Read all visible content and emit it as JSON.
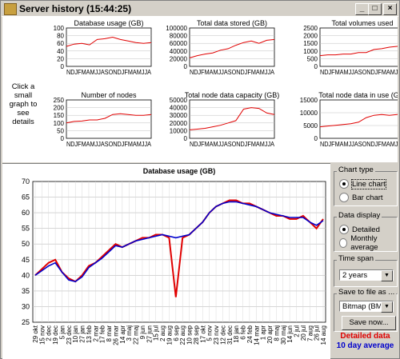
{
  "window": {
    "title": "Server history  (15:44:25)",
    "controls": [
      "_",
      "□",
      "×"
    ]
  },
  "hint_text": "Click a small graph to see details",
  "small_charts": [
    {
      "title": "Database usage (GB)",
      "yticks": [
        "100",
        "80",
        "60",
        "40",
        "20",
        "0"
      ],
      "xlabel": "NDJFMAMJJASONDJFMAMJJA"
    },
    {
      "title": "Total data stored (GB)",
      "yticks": [
        "100000",
        "80000",
        "60000",
        "40000",
        "20000",
        "0"
      ],
      "xlabel": "NDJFMAMJJASONDJFMAMJJA"
    },
    {
      "title": "Total volumes used",
      "yticks": [
        "2500",
        "2000",
        "1500",
        "1000",
        "500",
        "0"
      ],
      "xlabel": "NDJFMAMJJASONDJFMAMJJA"
    },
    {
      "title": "Number of nodes",
      "yticks": [
        "250",
        "200",
        "150",
        "100",
        "50",
        "0"
      ],
      "xlabel": "NDJFMAMJJASONDJFMAMJJA"
    },
    {
      "title": "Total node data capacity (GB)",
      "yticks": [
        "50000",
        "40000",
        "30000",
        "20000",
        "10000",
        "0"
      ],
      "xlabel": "NDJFMAMJJASONDJFMAMJJA"
    },
    {
      "title": "Total node data in use (GB)",
      "yticks": [
        "15000",
        "10000",
        "5000",
        "0"
      ],
      "xlabel": "NDJFMAMJJASONDJFMAMJJA"
    }
  ],
  "chart_data": {
    "type": "line",
    "title": "Database usage (GB)",
    "xlabel": "",
    "ylabel": "",
    "ylim": [
      25,
      70
    ],
    "yticks": [
      25,
      30,
      35,
      40,
      45,
      50,
      55,
      60,
      65,
      70
    ],
    "x": [
      "29 okt",
      "15 nov",
      "2 dec",
      "19 dec",
      "5 jan",
      "23 dec",
      "10 jan",
      "27 jan",
      "13 feb",
      "2 mar",
      "17 feb",
      "8 mar",
      "26 mar",
      "14 apr",
      "3 maj",
      "22 maj",
      "9 jun",
      "27 jun",
      "15 jul",
      "2 aug",
      "19 aug",
      "6 sep",
      "22 aug",
      "10 sep",
      "28 sep",
      "17 okt",
      "5 nov",
      "23 nov",
      "12 dec",
      "31 dec",
      "18 jan",
      "6 feb",
      "24 feb",
      "14 mar",
      "1 apr",
      "20 apr",
      "8 maj",
      "30 maj",
      "14 jun",
      "2 jul",
      "20 jul",
      "7 aug",
      "26 jul",
      "14 aug"
    ],
    "series": [
      {
        "name": "Detailed data",
        "color": "#e00000",
        "values": [
          40,
          42,
          44,
          45,
          41,
          39,
          38,
          40,
          43,
          44,
          46,
          48,
          50,
          49,
          50,
          51,
          52,
          52,
          53,
          53,
          52,
          33,
          52,
          53,
          55,
          57,
          60,
          62,
          63,
          64,
          64,
          63,
          63,
          62,
          61,
          60,
          59,
          59,
          58,
          58,
          59,
          57,
          55,
          58
        ]
      },
      {
        "name": "10 day average",
        "color": "#0000cc",
        "values": [
          40,
          41.5,
          43,
          44,
          41,
          38.5,
          38,
          39.5,
          42.5,
          44,
          45.5,
          47.5,
          49.5,
          49,
          50,
          51,
          51.5,
          52,
          52.5,
          53,
          52.5,
          52,
          52.5,
          53,
          55,
          57,
          60,
          62,
          63,
          63.5,
          63.5,
          63,
          62.5,
          62,
          61,
          60,
          59.5,
          59,
          58.5,
          58.5,
          58.5,
          57,
          56,
          57.5
        ]
      }
    ],
    "grid": true
  },
  "sidebar": {
    "chart_type": {
      "label": "Chart type",
      "options": [
        "Line chart",
        "Bar chart"
      ],
      "selected": 0
    },
    "data_display": {
      "label": "Data display",
      "options": [
        "Detailed",
        "Monthly average"
      ],
      "selected": 0
    },
    "time_span": {
      "label": "Time span",
      "value": "2 years"
    },
    "save": {
      "label": "Save to file as ...",
      "value": "Bitmap (BMP)",
      "button": "Save now..."
    },
    "legend": {
      "detail": "Detailed data",
      "average": "10 day average"
    }
  }
}
